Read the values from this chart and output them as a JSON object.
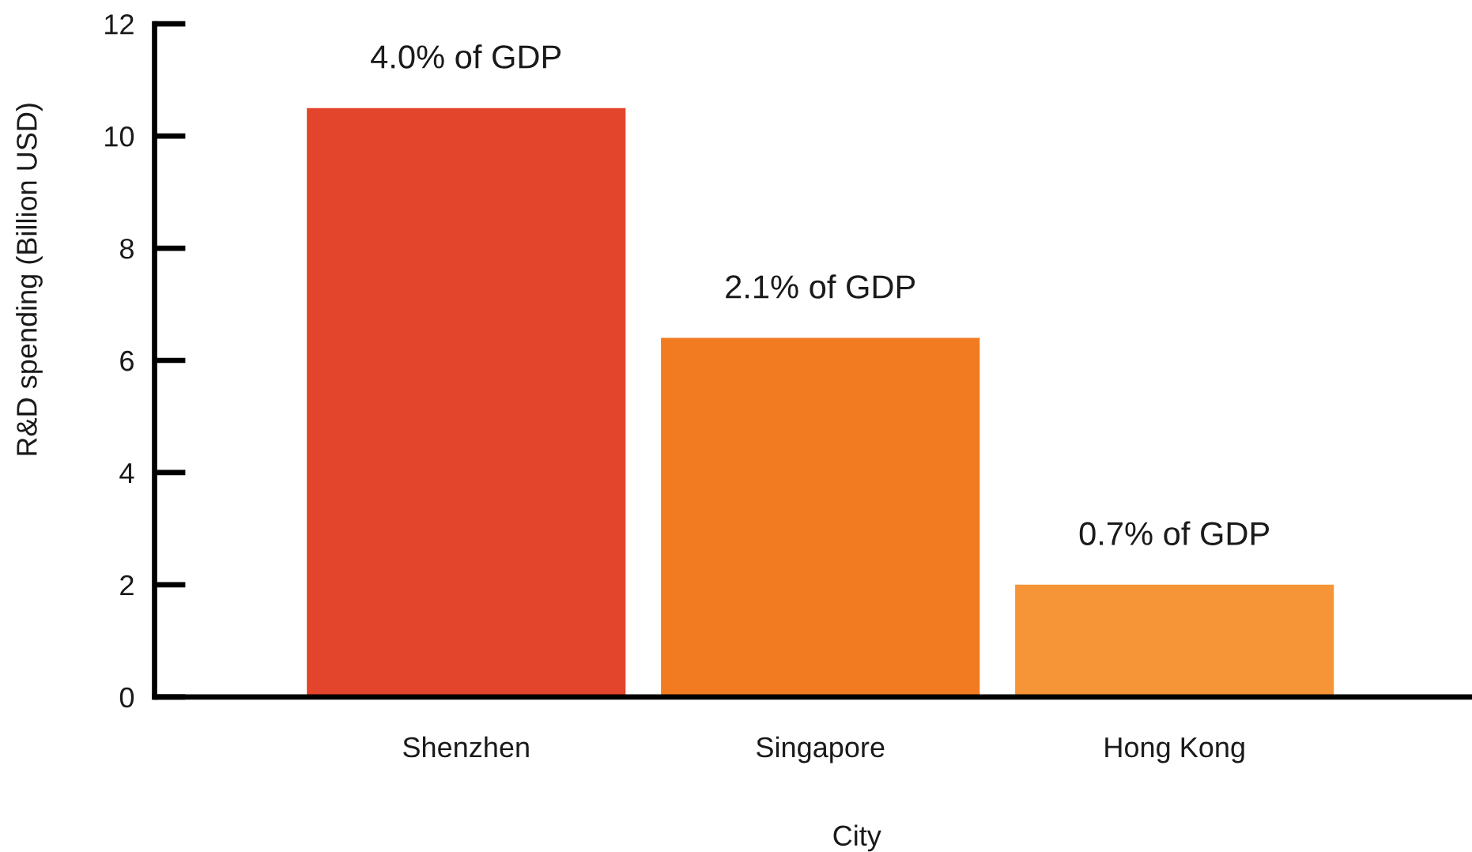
{
  "chart_data": {
    "type": "bar",
    "xlabel": "City",
    "ylabel": "R&D spending (Billion USD)",
    "categories": [
      "Shenzhen",
      "Singapore",
      "Hong Kong"
    ],
    "values": [
      10.5,
      6.4,
      2.0
    ],
    "colors": [
      "#e2452b",
      "#f27b21",
      "#f69537"
    ],
    "annotations": [
      {
        "text": "4.0% of GDP",
        "x": "Shenzhen",
        "y": 10.5
      },
      {
        "text": "2.1% of GDP",
        "x": "Singapore",
        "y": 6.4
      },
      {
        "text": "0.7% of GDP",
        "x": "Hong Kong",
        "y": 2.0
      }
    ],
    "ylim": [
      0,
      12
    ],
    "yticks": [
      0,
      2,
      4,
      6,
      8,
      10,
      12
    ]
  }
}
